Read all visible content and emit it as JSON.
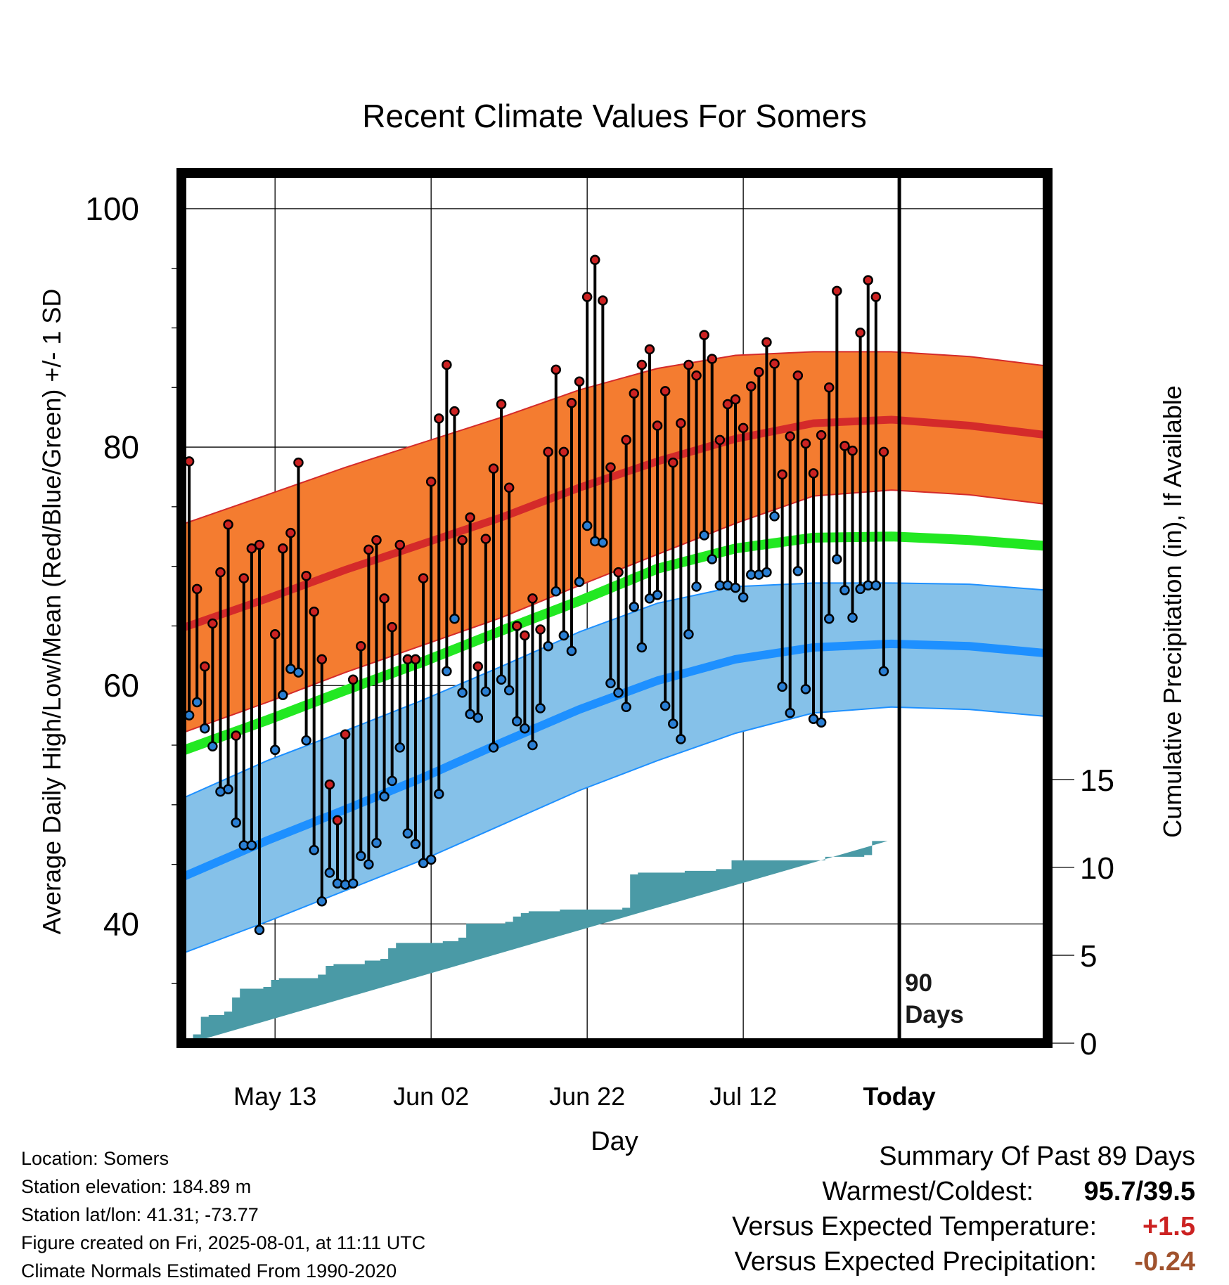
{
  "title": "Recent Climate Values For Somers",
  "y_label": "Average Daily High/Low/Mean (Red/Blue/Green) +/- 1 SD",
  "y2_label": "Cumulative Precipitation (in), If Available",
  "x_label": "Day",
  "x_ticks": [
    "May 13",
    "Jun 02",
    "Jun 22",
    "Jul 12",
    "Today"
  ],
  "y_ticks": [
    "40",
    "60",
    "80",
    "100"
  ],
  "y2_ticks": [
    "0",
    "5",
    "10",
    "15"
  ],
  "today_note_line1": "90",
  "today_note_line2": "Days",
  "info": {
    "location": "Location: Somers",
    "elevation": "Station elevation: 184.89 m",
    "latlon": "Station lat/lon: 41.31; -73.77",
    "created": "Figure created on Fri, 2025-08-01, at 11:11 UTC",
    "normals": "Climate Normals Estimated From 1990-2020"
  },
  "summary": {
    "heading": "Summary Of Past 89 Days",
    "warm_cold_label": "Warmest/Coldest:",
    "warm_cold_value": "95.7/39.5",
    "temp_label": "Versus Expected Temperature:",
    "temp_value": "+1.5",
    "precip_label": "Versus Expected Precipitation:",
    "precip_value": "-0.24"
  },
  "colors": {
    "high_band": "#f47c30",
    "high_mean": "#d42a2a",
    "mean": "#22e822",
    "low_band": "#85c1e9",
    "low_mean": "#1e90ff",
    "precip": "#4a9aa6",
    "high_dot": "#cc2222",
    "low_dot": "#2a7fd4",
    "temp_value": "#cc2222",
    "precip_value": "#a0522d"
  },
  "chart_data": {
    "type": "line",
    "xlim": [
      -11,
      100
    ],
    "ylim": [
      30,
      103
    ],
    "y2lim": [
      0,
      49.5
    ],
    "date_ticks": [
      1,
      21,
      41,
      61,
      81
    ],
    "normals_x": [
      -11,
      0,
      10,
      20,
      30,
      40,
      50,
      60,
      70,
      80,
      90,
      100
    ],
    "normal_high": [
      64.8,
      67.3,
      69.7,
      71.9,
      74.1,
      76.6,
      78.8,
      80.7,
      82.0,
      82.3,
      81.8,
      81.0
    ],
    "normal_high_upper": [
      73.5,
      76.0,
      78.3,
      80.4,
      82.5,
      84.8,
      86.6,
      87.7,
      88.0,
      88.0,
      87.6,
      86.8
    ],
    "normal_high_lower": [
      56.0,
      58.6,
      61.1,
      63.4,
      65.7,
      68.4,
      71.0,
      73.6,
      75.9,
      76.4,
      76.0,
      75.2
    ],
    "normal_mean": [
      54.5,
      57.1,
      59.6,
      62.0,
      64.6,
      67.1,
      69.8,
      71.5,
      72.4,
      72.5,
      72.2,
      71.7
    ],
    "normal_low": [
      43.9,
      47.0,
      49.6,
      52.3,
      55.2,
      58.0,
      60.4,
      62.2,
      63.2,
      63.5,
      63.3,
      62.7
    ],
    "normal_low_upper": [
      50.5,
      53.7,
      56.2,
      58.8,
      61.6,
      64.5,
      66.9,
      68.3,
      68.6,
      68.6,
      68.5,
      68.0
    ],
    "normal_low_lower": [
      37.5,
      40.2,
      42.8,
      45.4,
      48.3,
      51.2,
      53.7,
      56.0,
      57.7,
      58.2,
      58.0,
      57.4
    ],
    "obs_day": [
      -10,
      -9,
      -8,
      -7,
      -6,
      -5,
      -4,
      -3,
      -2,
      -1,
      0,
      1,
      2,
      3,
      4,
      5,
      6,
      7,
      8,
      9,
      10,
      11,
      12,
      13,
      14,
      15,
      16,
      17,
      18,
      19,
      20,
      21,
      22,
      23,
      24,
      25,
      26,
      27,
      28,
      29,
      30,
      31,
      32,
      33,
      34,
      35,
      36,
      37,
      38,
      39,
      40,
      41,
      42,
      43,
      44,
      45,
      46,
      47,
      48,
      49,
      50,
      51,
      52,
      53,
      54,
      55,
      56,
      57,
      58,
      59,
      60,
      61,
      62,
      63,
      64,
      65,
      66,
      67,
      68,
      69,
      70,
      71,
      72,
      73,
      74,
      75,
      76,
      77,
      78,
      79
    ],
    "obs_high": [
      78.8,
      68.1,
      61.6,
      65.2,
      69.5,
      73.5,
      55.8,
      69.0,
      71.5,
      71.8,
      null,
      64.3,
      71.5,
      72.8,
      78.7,
      69.2,
      66.2,
      62.2,
      51.7,
      48.7,
      55.9,
      60.5,
      63.3,
      71.4,
      72.2,
      67.3,
      64.9,
      71.8,
      62.2,
      62.2,
      69.0,
      77.1,
      82.4,
      86.9,
      83.0,
      72.2,
      74.1,
      61.6,
      72.3,
      78.2,
      83.6,
      76.6,
      65.0,
      64.2,
      67.3,
      64.7,
      79.6,
      86.5,
      79.6,
      83.7,
      85.5,
      92.6,
      95.7,
      92.3,
      78.3,
      69.5,
      80.6,
      84.5,
      86.9,
      88.2,
      81.8,
      84.7,
      78.7,
      82.0,
      86.9,
      86.0,
      89.4,
      87.4,
      80.6,
      83.6,
      84.0,
      81.6,
      85.1,
      86.3,
      88.8,
      87.0,
      77.7,
      80.9,
      86.0,
      80.3,
      77.8,
      81.0,
      85.0,
      93.1,
      80.1,
      79.7,
      89.6,
      94.0,
      92.6,
      79.6
    ],
    "obs_low": [
      57.5,
      58.6,
      56.4,
      54.9,
      51.1,
      51.3,
      48.5,
      46.6,
      46.6,
      39.5,
      null,
      54.6,
      59.2,
      61.4,
      61.1,
      55.4,
      46.2,
      41.9,
      44.3,
      43.4,
      43.3,
      43.4,
      45.7,
      45.0,
      46.8,
      50.7,
      52.0,
      54.8,
      47.6,
      46.7,
      45.1,
      45.4,
      50.9,
      61.2,
      65.6,
      59.4,
      57.6,
      57.3,
      59.5,
      54.8,
      60.5,
      59.6,
      57.0,
      56.4,
      55.0,
      58.1,
      63.3,
      67.9,
      64.2,
      62.9,
      68.7,
      73.4,
      72.1,
      72.0,
      60.2,
      59.4,
      58.2,
      66.6,
      63.2,
      67.3,
      67.6,
      58.3,
      56.8,
      55.5,
      64.3,
      68.3,
      72.6,
      70.6,
      68.4,
      68.4,
      68.2,
      67.4,
      69.3,
      69.3,
      69.5,
      74.2,
      59.9,
      57.7,
      69.6,
      59.7,
      57.2,
      56.9,
      65.6,
      70.6,
      68.0,
      65.7,
      68.1,
      68.4,
      68.4,
      61.2
    ],
    "precip_day": [
      -10,
      -9,
      -8,
      -7,
      -6,
      -5,
      -4,
      -3,
      -2,
      -1,
      0,
      1,
      2,
      3,
      4,
      5,
      6,
      7,
      8,
      9,
      10,
      11,
      12,
      13,
      14,
      15,
      16,
      17,
      18,
      19,
      20,
      21,
      22,
      23,
      24,
      25,
      26,
      27,
      28,
      29,
      30,
      31,
      32,
      33,
      34,
      35,
      36,
      37,
      38,
      39,
      40,
      41,
      42,
      43,
      44,
      45,
      46,
      47,
      48,
      49,
      50,
      51,
      52,
      53,
      54,
      55,
      56,
      57,
      58,
      59,
      60,
      61,
      62,
      63,
      64,
      65,
      66,
      67,
      68,
      69,
      70,
      71,
      72,
      73,
      74,
      75,
      76,
      77,
      78,
      79,
      80,
      81,
      82,
      83,
      84,
      85,
      86,
      87,
      88,
      89
    ],
    "precip": [
      0.0,
      0.5,
      1.5,
      1.6,
      1.6,
      1.8,
      2.6,
      3.1,
      3.1,
      3.1,
      3.2,
      3.6,
      3.7,
      3.7,
      3.7,
      3.7,
      3.7,
      3.9,
      4.4,
      4.5,
      4.5,
      4.5,
      4.5,
      4.7,
      4.7,
      4.8,
      5.4,
      5.7,
      5.7,
      5.7,
      5.7,
      5.7,
      5.7,
      5.8,
      5.8,
      6.0,
      6.8,
      6.8,
      6.8,
      6.8,
      6.8,
      6.9,
      7.2,
      7.4,
      7.5,
      7.5,
      7.5,
      7.5,
      7.6,
      7.6,
      7.6,
      7.6,
      7.6,
      7.6,
      7.6,
      7.6,
      7.7,
      9.6,
      9.7,
      9.7,
      9.7,
      9.7,
      9.7,
      9.7,
      9.8,
      9.8,
      9.8,
      9.8,
      9.9,
      9.9,
      10.4,
      10.4,
      10.4,
      10.4,
      10.4,
      10.4,
      10.4,
      10.4,
      10.4,
      10.4,
      10.4,
      10.4,
      10.6,
      10.6,
      10.6,
      10.6,
      10.6,
      10.7,
      11.5,
      11.5
    ]
  }
}
